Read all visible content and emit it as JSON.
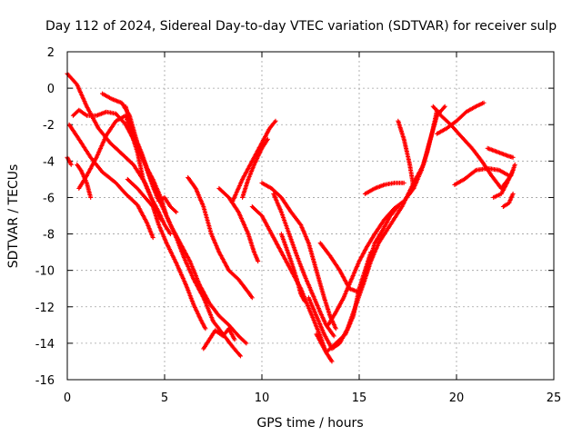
{
  "chart_data": {
    "type": "scatter",
    "title": "Day 112 of 2024, Sidereal Day-to-day VTEC variation (SDTVAR) for receiver sulp",
    "xlabel": "GPS time / hours",
    "ylabel": "SDTVAR / TECUs",
    "xlim": [
      0,
      25
    ],
    "ylim": [
      -16,
      2
    ],
    "xticks": [
      0,
      5,
      10,
      15,
      20,
      25
    ],
    "yticks": [
      2,
      0,
      -2,
      -4,
      -6,
      -8,
      -10,
      -12,
      -14,
      -16
    ],
    "grid": true,
    "marker": "plus",
    "color": "#ff0000",
    "tracks": [
      {
        "points": [
          [
            0.0,
            0.8
          ],
          [
            0.5,
            0.2
          ],
          [
            1.0,
            -1.0
          ],
          [
            1.6,
            -2.2
          ],
          [
            2.2,
            -3.0
          ],
          [
            2.8,
            -3.6
          ],
          [
            3.4,
            -4.2
          ],
          [
            4.0,
            -5.2
          ],
          [
            4.5,
            -6.5
          ],
          [
            4.8,
            -7.2
          ]
        ]
      },
      {
        "points": [
          [
            0.1,
            -2.0
          ],
          [
            0.6,
            -2.8
          ],
          [
            1.2,
            -3.8
          ],
          [
            1.8,
            -4.6
          ],
          [
            2.5,
            -5.2
          ],
          [
            3.0,
            -5.8
          ],
          [
            3.6,
            -6.4
          ],
          [
            4.1,
            -7.4
          ],
          [
            4.4,
            -8.2
          ]
        ]
      },
      {
        "points": [
          [
            0.0,
            -3.8
          ],
          [
            0.2,
            -4.2
          ]
        ]
      },
      {
        "points": [
          [
            0.3,
            -1.5
          ],
          [
            0.6,
            -1.2
          ],
          [
            1.0,
            -1.5
          ],
          [
            1.5,
            -1.5
          ],
          [
            2.0,
            -1.3
          ],
          [
            2.5,
            -1.4
          ],
          [
            3.0,
            -2.0
          ],
          [
            3.5,
            -3.0
          ],
          [
            4.0,
            -4.2
          ],
          [
            4.4,
            -5.4
          ],
          [
            4.7,
            -6.2
          ],
          [
            5.0,
            -6.0
          ],
          [
            5.3,
            -6.5
          ],
          [
            5.6,
            -6.8
          ]
        ]
      },
      {
        "points": [
          [
            0.5,
            -4.2
          ],
          [
            0.7,
            -4.5
          ],
          [
            1.0,
            -5.2
          ],
          [
            1.2,
            -6.0
          ]
        ]
      },
      {
        "points": [
          [
            0.6,
            -5.5
          ],
          [
            1.0,
            -4.8
          ],
          [
            1.5,
            -3.8
          ],
          [
            2.0,
            -2.6
          ],
          [
            2.5,
            -1.8
          ],
          [
            3.0,
            -1.5
          ],
          [
            3.3,
            -2.5
          ],
          [
            3.6,
            -3.5
          ],
          [
            3.9,
            -5.0
          ],
          [
            4.3,
            -6.0
          ],
          [
            4.7,
            -6.8
          ],
          [
            5.0,
            -7.5
          ],
          [
            5.3,
            -8.0
          ]
        ]
      },
      {
        "points": [
          [
            1.8,
            -0.3
          ],
          [
            2.3,
            -0.6
          ],
          [
            2.8,
            -0.8
          ],
          [
            3.2,
            -1.5
          ],
          [
            3.6,
            -3.0
          ],
          [
            4.1,
            -4.4
          ],
          [
            4.4,
            -5.0
          ],
          [
            4.8,
            -6.0
          ],
          [
            5.1,
            -7.0
          ],
          [
            5.6,
            -8.2
          ],
          [
            6.0,
            -9.3
          ],
          [
            6.5,
            -10.5
          ],
          [
            7.0,
            -11.5
          ],
          [
            7.5,
            -12.8
          ],
          [
            8.0,
            -13.5
          ],
          [
            8.5,
            -14.2
          ],
          [
            8.9,
            -14.7
          ]
        ]
      },
      {
        "points": [
          [
            3.0,
            -1.0
          ],
          [
            3.4,
            -2.5
          ],
          [
            3.8,
            -3.5
          ],
          [
            4.3,
            -5.0
          ],
          [
            4.8,
            -6.3
          ],
          [
            5.3,
            -7.5
          ],
          [
            5.8,
            -8.5
          ],
          [
            6.3,
            -9.5
          ],
          [
            6.8,
            -10.8
          ],
          [
            7.3,
            -11.8
          ],
          [
            7.8,
            -12.5
          ],
          [
            8.3,
            -13.0
          ],
          [
            8.8,
            -13.6
          ],
          [
            9.2,
            -14.0
          ]
        ]
      },
      {
        "points": [
          [
            3.1,
            -5.0
          ],
          [
            3.6,
            -5.5
          ],
          [
            4.0,
            -6.0
          ],
          [
            4.4,
            -6.5
          ],
          [
            4.7,
            -7.5
          ],
          [
            5.1,
            -8.5
          ],
          [
            5.6,
            -9.6
          ],
          [
            6.1,
            -10.8
          ],
          [
            6.5,
            -11.9
          ],
          [
            6.9,
            -12.8
          ],
          [
            7.1,
            -13.2
          ]
        ]
      },
      {
        "points": [
          [
            7.0,
            -14.3
          ],
          [
            7.3,
            -13.8
          ],
          [
            7.6,
            -13.3
          ],
          [
            8.0,
            -13.6
          ],
          [
            8.3,
            -13.2
          ],
          [
            8.6,
            -13.8
          ]
        ]
      },
      {
        "points": [
          [
            6.2,
            -4.9
          ],
          [
            6.6,
            -5.5
          ],
          [
            7.0,
            -6.5
          ],
          [
            7.4,
            -8.0
          ],
          [
            7.8,
            -9.0
          ],
          [
            8.3,
            -10.0
          ],
          [
            8.8,
            -10.5
          ],
          [
            9.3,
            -11.2
          ],
          [
            9.5,
            -11.5
          ]
        ]
      },
      {
        "points": [
          [
            7.8,
            -5.5
          ],
          [
            8.3,
            -6.0
          ],
          [
            8.8,
            -6.8
          ],
          [
            9.3,
            -8.0
          ],
          [
            9.6,
            -9.0
          ],
          [
            9.8,
            -9.5
          ]
        ]
      },
      {
        "points": [
          [
            8.5,
            -6.2
          ],
          [
            9.0,
            -5.0
          ],
          [
            9.5,
            -4.0
          ],
          [
            10.0,
            -3.0
          ],
          [
            10.4,
            -2.2
          ],
          [
            10.7,
            -1.8
          ]
        ]
      },
      {
        "points": [
          [
            9.0,
            -6.0
          ],
          [
            9.3,
            -5.0
          ],
          [
            9.6,
            -4.2
          ],
          [
            10.0,
            -3.3
          ],
          [
            10.3,
            -2.8
          ]
        ]
      },
      {
        "points": [
          [
            10.0,
            -5.2
          ],
          [
            10.5,
            -5.5
          ],
          [
            11.0,
            -6.0
          ],
          [
            11.5,
            -6.8
          ],
          [
            12.0,
            -7.5
          ],
          [
            12.4,
            -8.5
          ],
          [
            12.8,
            -10.0
          ],
          [
            13.2,
            -11.5
          ],
          [
            13.5,
            -12.5
          ],
          [
            13.8,
            -13.2
          ]
        ]
      },
      {
        "points": [
          [
            10.6,
            -5.8
          ],
          [
            11.0,
            -6.8
          ],
          [
            11.4,
            -8.0
          ],
          [
            11.8,
            -9.2
          ],
          [
            12.2,
            -10.3
          ],
          [
            12.6,
            -11.3
          ],
          [
            13.0,
            -12.3
          ],
          [
            13.3,
            -13.0
          ],
          [
            13.7,
            -13.6
          ]
        ]
      },
      {
        "points": [
          [
            9.5,
            -6.5
          ],
          [
            10.0,
            -7.0
          ],
          [
            10.5,
            -8.0
          ],
          [
            11.0,
            -9.0
          ],
          [
            11.5,
            -10.0
          ],
          [
            12.0,
            -11.0
          ],
          [
            12.5,
            -12.3
          ],
          [
            13.0,
            -13.6
          ],
          [
            13.3,
            -14.5
          ],
          [
            13.6,
            -15.0
          ]
        ]
      },
      {
        "points": [
          [
            11.0,
            -8.0
          ],
          [
            11.5,
            -9.5
          ],
          [
            11.8,
            -10.5
          ],
          [
            12.0,
            -11.3
          ],
          [
            12.2,
            -11.7
          ]
        ]
      },
      {
        "points": [
          [
            12.4,
            -11.5
          ],
          [
            12.8,
            -12.5
          ],
          [
            13.2,
            -13.5
          ],
          [
            13.6,
            -14.3
          ],
          [
            14.0,
            -14.0
          ],
          [
            14.4,
            -13.2
          ],
          [
            14.8,
            -12.0
          ],
          [
            15.2,
            -10.8
          ],
          [
            15.6,
            -9.5
          ],
          [
            16.0,
            -8.5
          ],
          [
            16.6,
            -7.5
          ],
          [
            17.2,
            -6.5
          ],
          [
            17.8,
            -5.2
          ],
          [
            18.3,
            -4.2
          ],
          [
            18.6,
            -3.0
          ],
          [
            19.0,
            -1.5
          ],
          [
            19.4,
            -1.0
          ]
        ]
      },
      {
        "points": [
          [
            13.4,
            -13.0
          ],
          [
            13.8,
            -12.3
          ],
          [
            14.2,
            -11.5
          ],
          [
            14.6,
            -10.5
          ],
          [
            15.0,
            -9.5
          ],
          [
            15.4,
            -8.7
          ],
          [
            15.8,
            -8.0
          ],
          [
            16.3,
            -7.2
          ],
          [
            16.8,
            -6.6
          ],
          [
            17.3,
            -6.2
          ],
          [
            17.8,
            -5.5
          ],
          [
            18.2,
            -4.5
          ],
          [
            18.5,
            -3.5
          ],
          [
            18.8,
            -2.2
          ],
          [
            19.0,
            -1.2
          ]
        ]
      },
      {
        "points": [
          [
            12.8,
            -13.5
          ],
          [
            13.3,
            -14.5
          ],
          [
            13.8,
            -14.0
          ],
          [
            14.3,
            -13.5
          ],
          [
            14.7,
            -12.5
          ],
          [
            15.0,
            -11.0
          ],
          [
            15.3,
            -10.0
          ],
          [
            15.6,
            -9.0
          ]
        ]
      },
      {
        "points": [
          [
            13.0,
            -8.5
          ],
          [
            13.5,
            -9.2
          ],
          [
            14.0,
            -10.0
          ],
          [
            14.5,
            -11.0
          ],
          [
            15.0,
            -11.2
          ],
          [
            15.4,
            -10.0
          ],
          [
            15.8,
            -8.5
          ],
          [
            16.2,
            -7.8
          ],
          [
            16.6,
            -7.0
          ],
          [
            17.0,
            -6.5
          ]
        ]
      },
      {
        "points": [
          [
            15.3,
            -5.8
          ],
          [
            15.8,
            -5.5
          ],
          [
            16.3,
            -5.3
          ],
          [
            16.8,
            -5.2
          ],
          [
            17.3,
            -5.2
          ]
        ]
      },
      {
        "points": [
          [
            17.0,
            -1.8
          ],
          [
            17.3,
            -2.8
          ],
          [
            17.6,
            -4.2
          ],
          [
            17.8,
            -5.5
          ]
        ]
      },
      {
        "points": [
          [
            18.8,
            -1.0
          ],
          [
            19.2,
            -1.5
          ],
          [
            19.7,
            -2.0
          ],
          [
            20.2,
            -2.6
          ],
          [
            20.8,
            -3.3
          ],
          [
            21.3,
            -4.0
          ],
          [
            21.8,
            -4.8
          ],
          [
            22.3,
            -5.5
          ],
          [
            22.8,
            -4.8
          ],
          [
            23.0,
            -4.2
          ]
        ]
      },
      {
        "points": [
          [
            19.0,
            -2.5
          ],
          [
            19.5,
            -2.2
          ],
          [
            20.0,
            -1.8
          ],
          [
            20.5,
            -1.3
          ],
          [
            21.0,
            -1.0
          ],
          [
            21.4,
            -0.8
          ]
        ]
      },
      {
        "points": [
          [
            19.9,
            -5.3
          ],
          [
            20.4,
            -5.0
          ],
          [
            21.0,
            -4.5
          ],
          [
            21.6,
            -4.4
          ],
          [
            22.2,
            -4.5
          ],
          [
            22.7,
            -4.8
          ]
        ]
      },
      {
        "points": [
          [
            21.6,
            -3.3
          ],
          [
            22.1,
            -3.5
          ],
          [
            22.6,
            -3.7
          ],
          [
            22.9,
            -3.8
          ]
        ]
      },
      {
        "points": [
          [
            21.9,
            -6.0
          ],
          [
            22.3,
            -5.8
          ],
          [
            22.6,
            -5.2
          ],
          [
            22.9,
            -4.5
          ]
        ]
      },
      {
        "points": [
          [
            22.4,
            -6.5
          ],
          [
            22.7,
            -6.3
          ],
          [
            22.9,
            -5.8
          ]
        ]
      }
    ]
  }
}
